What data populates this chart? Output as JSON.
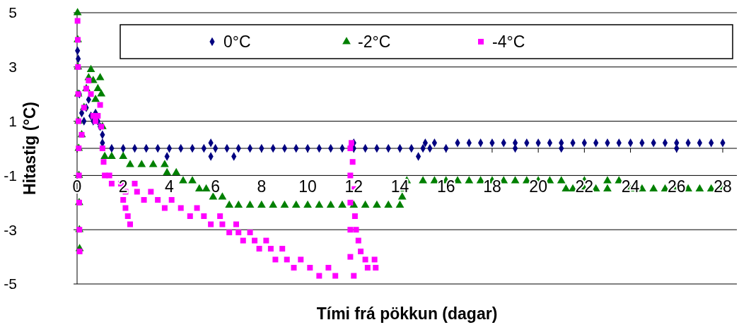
{
  "chart_data": {
    "type": "scatter",
    "xlabel": "Tími frá pökkun (dagar)",
    "ylabel": "Hitastig (°C)",
    "xlim": [
      0,
      28
    ],
    "xticks": [
      0,
      2,
      4,
      6,
      8,
      10,
      12,
      14,
      16,
      18,
      20,
      22,
      24,
      26,
      28
    ],
    "ylim": [
      -5,
      5
    ],
    "yticks": [
      -5,
      -3,
      -1,
      1,
      3,
      5
    ],
    "grid": "y",
    "legend": "top",
    "series": [
      {
        "name": "0°C",
        "color": "#000080",
        "marker": "diamond",
        "x": [
          0.02,
          0.05,
          0.1,
          0.2,
          0.3,
          0.4,
          0.5,
          0.6,
          0.7,
          0.8,
          0.9,
          1.0,
          1.1,
          1.1,
          1.5,
          2,
          2.5,
          3,
          3.5,
          4,
          4.5,
          5,
          5.5,
          6,
          6.5,
          7,
          7.5,
          8,
          8.5,
          9,
          9.5,
          10,
          10.5,
          11,
          11.5,
          12,
          12.5,
          13,
          13.5,
          14,
          14.5,
          3.9,
          5.8,
          5.8,
          6.8,
          12,
          14.8,
          15,
          15.3,
          16,
          19,
          21,
          26,
          15.1,
          15.5,
          16.5,
          17,
          17.5,
          18,
          18.5,
          19,
          19.5,
          20,
          20.5,
          21,
          21.5,
          22,
          22.5,
          23,
          23.5,
          24,
          24.5,
          25,
          25.5,
          26,
          26.5,
          27,
          27.5,
          28
        ],
        "values": [
          3.6,
          3.3,
          2.0,
          1.3,
          1.0,
          1.5,
          1.8,
          1.2,
          1.0,
          1.3,
          1.0,
          0.8,
          0.5,
          0.2,
          0,
          0,
          0,
          0,
          0,
          0,
          0,
          0,
          0,
          0,
          0,
          0,
          0,
          0,
          0,
          0,
          0,
          0,
          0,
          0,
          0,
          0,
          0,
          0,
          0,
          0,
          0,
          -0.3,
          0.2,
          -0.3,
          -0.3,
          0.2,
          -0.3,
          0,
          0,
          0,
          0,
          0,
          0,
          0.2,
          0.2,
          0.2,
          0.2,
          0.2,
          0.2,
          0.2,
          0.2,
          0.2,
          0.2,
          0.2,
          0.2,
          0.2,
          0.2,
          0.2,
          0.2,
          0.2,
          0.2,
          0.2,
          0.2,
          0.2,
          0.2,
          0.2,
          0.2,
          0.2,
          0.2
        ]
      },
      {
        "name": "-2°C",
        "color": "#008000",
        "marker": "triangle",
        "x": [
          0.02,
          0.03,
          0.04,
          0.05,
          0.06,
          0.07,
          0.08,
          0.09,
          0.1,
          0.11,
          0.2,
          0.3,
          0.4,
          0.5,
          0.6,
          0.7,
          0.8,
          0.9,
          1.0,
          1.05,
          1.1,
          1.2,
          1.5,
          2.0,
          2.3,
          2.8,
          3.3,
          3.8,
          3.9,
          4.3,
          4.6,
          5.0,
          5.3,
          5.6,
          5.9,
          6.3,
          6.6,
          7,
          7.5,
          8,
          8.5,
          9,
          9.5,
          10,
          10.5,
          11,
          11.5,
          12,
          12.5,
          13,
          13.5,
          14,
          14.1,
          14.15,
          14.3,
          15,
          15.5,
          16,
          16.5,
          17,
          17.5,
          18,
          18.5,
          19,
          19.5,
          20,
          20.5,
          21,
          21.2,
          21.5,
          22,
          22,
          22.5,
          23,
          23,
          23.5,
          24,
          24.5,
          25,
          25.5,
          26,
          26.5,
          27,
          27.5,
          28
        ],
        "values": [
          5,
          4,
          3,
          2,
          1,
          0,
          -1,
          -2,
          -3,
          -3.7,
          0.5,
          1.5,
          2.2,
          2.6,
          2.9,
          2.5,
          1.8,
          2.2,
          2.6,
          2.0,
          0.8,
          -0.3,
          -0.3,
          -0.3,
          -0.6,
          -0.6,
          -0.6,
          -0.6,
          -0.9,
          -0.9,
          -1.2,
          -1.2,
          -1.5,
          -1.5,
          -1.8,
          -1.8,
          -2.1,
          -2.1,
          -2.1,
          -2.1,
          -2.1,
          -2.1,
          -2.1,
          -2.1,
          -2.1,
          -2.1,
          -2.1,
          -2.1,
          -2.1,
          -2.1,
          -2.1,
          -2.1,
          -1.8,
          -1.5,
          -1.2,
          -1.2,
          -1.2,
          -1.2,
          -1.2,
          -1.2,
          -1.2,
          -1.2,
          -1.2,
          -1.2,
          -1.2,
          -1.2,
          -1.2,
          -1.2,
          -1.5,
          -1.5,
          -1.5,
          -1.2,
          -1.5,
          -1.5,
          -1.2,
          -1.2,
          -1.5,
          -1.5,
          -1.5,
          -1.5,
          -1.5,
          -1.5,
          -1.5,
          -1.5,
          -1.5
        ]
      },
      {
        "name": "-4°C",
        "color": "#ff00ff",
        "marker": "square",
        "x": [
          0.02,
          0.03,
          0.04,
          0.05,
          0.06,
          0.07,
          0.08,
          0.09,
          0.1,
          0.11,
          0.2,
          0.3,
          0.4,
          0.5,
          0.6,
          0.7,
          0.8,
          0.9,
          1.0,
          1.05,
          1.1,
          1.15,
          1.2,
          1.4,
          1.5,
          1.9,
          2.0,
          2.1,
          2.2,
          2.3,
          2.5,
          2.1,
          2.6,
          3.2,
          2.9,
          3.5,
          4.1,
          3.8,
          4.5,
          5.2,
          4.9,
          5.5,
          6.2,
          5.8,
          6.3,
          6.9,
          6.6,
          7.0,
          7.5,
          7.2,
          7.7,
          8.2,
          7.9,
          8.4,
          8.9,
          8.6,
          9.1,
          9.7,
          9.4,
          10.1,
          10.9,
          10.5,
          11.2,
          12.0,
          11.85,
          11.85,
          11.85,
          11.85,
          11.85,
          11.9,
          11.95,
          12.0,
          12.05,
          12.1,
          12.2,
          12.3,
          12.5,
          12.9,
          12.6,
          12.95
        ],
        "values": [
          4.7,
          4,
          3,
          2,
          1,
          0,
          -1,
          -2,
          -3,
          -3.8,
          0.5,
          1.5,
          2.2,
          2.5,
          2.0,
          1.2,
          1.0,
          1.2,
          1.6,
          0.8,
          0,
          -0.5,
          -1.0,
          -1.0,
          -1.3,
          -1.3,
          -1.9,
          -2.2,
          -2.5,
          -2.8,
          -1.3,
          -1.6,
          -1.6,
          -1.6,
          -1.9,
          -1.9,
          -1.9,
          -2.2,
          -2.2,
          -2.2,
          -2.5,
          -2.5,
          -2.5,
          -2.8,
          -2.8,
          -2.8,
          -3.1,
          -3.1,
          -3.1,
          -3.4,
          -3.4,
          -3.4,
          -3.7,
          -3.7,
          -3.7,
          -4.1,
          -4.1,
          -4.1,
          -4.4,
          -4.4,
          -4.4,
          -4.7,
          -4.7,
          -4.7,
          -4.0,
          -3.0,
          -2.0,
          -1.0,
          0.0,
          0.2,
          -0.5,
          -1.5,
          -2.5,
          -3.0,
          -3.4,
          -3.8,
          -4.1,
          -4.1,
          -4.4,
          -4.4
        ]
      }
    ]
  }
}
